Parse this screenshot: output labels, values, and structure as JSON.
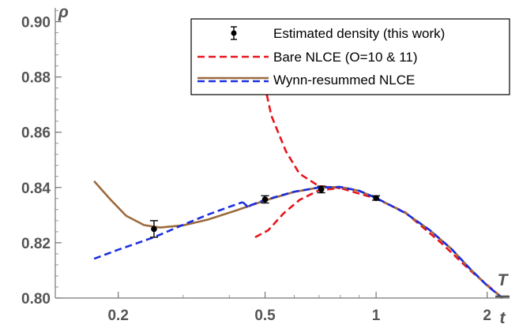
{
  "chart_data": {
    "type": "line",
    "xscale": "log",
    "xlabel_top": "T",
    "xlabel_bottom": "t",
    "ylabel": "ρ",
    "xlim": [
      0.135,
      2.3
    ],
    "ylim": [
      0.8,
      0.905
    ],
    "x_ticks": [
      {
        "value": 0.2,
        "label": "0.2"
      },
      {
        "value": 0.5,
        "label": "0.5"
      },
      {
        "value": 1,
        "label": "1"
      },
      {
        "value": 2,
        "label": "2"
      }
    ],
    "y_ticks": [
      {
        "value": 0.8,
        "label": "0.80"
      },
      {
        "value": 0.82,
        "label": "0.82"
      },
      {
        "value": 0.84,
        "label": "0.84"
      },
      {
        "value": 0.86,
        "label": "0.86"
      },
      {
        "value": 0.88,
        "label": "0.88"
      },
      {
        "value": 0.9,
        "label": "0.90"
      }
    ],
    "legend_position": "top-right",
    "series": [
      {
        "name": "Estimated density (this work)",
        "style": "points-errorbars",
        "color": "#000000",
        "points": [
          {
            "x": 0.25,
            "y": 0.825,
            "err": 0.003
          },
          {
            "x": 0.5,
            "y": 0.8357,
            "err": 0.0013
          },
          {
            "x": 0.71,
            "y": 0.8393,
            "err": 0.0012
          },
          {
            "x": 1.0,
            "y": 0.8362,
            "err": 0.0008
          }
        ]
      },
      {
        "name": "Bare NLCE (O=10 & 11)",
        "style": "dashed",
        "color": "#e8141c",
        "lines": [
          [
            [
              0.475,
              0.8973
            ],
            [
              0.49,
              0.882
            ],
            [
              0.52,
              0.866
            ],
            [
              0.57,
              0.853
            ],
            [
              0.62,
              0.845
            ],
            [
              0.7,
              0.8405
            ],
            [
              0.8,
              0.8398
            ],
            [
              1.0,
              0.836
            ],
            [
              1.2,
              0.831
            ],
            [
              1.5,
              0.82
            ],
            [
              1.8,
              0.81
            ],
            [
              2.2,
              0.8
            ]
          ],
          [
            [
              0.47,
              0.822
            ],
            [
              0.51,
              0.8245
            ],
            [
              0.56,
              0.8305
            ],
            [
              0.62,
              0.8355
            ],
            [
              0.7,
              0.839
            ],
            [
              0.8,
              0.8398
            ]
          ]
        ]
      },
      {
        "name": "Wynn-resummed NLCE",
        "style": "solid",
        "color": "#9c6a3d",
        "lines": [
          [
            [
              0.172,
              0.8423
            ],
            [
              0.19,
              0.8358
            ],
            [
              0.21,
              0.8298
            ],
            [
              0.235,
              0.8264
            ],
            [
              0.26,
              0.8255
            ],
            [
              0.3,
              0.8263
            ],
            [
              0.35,
              0.8284
            ],
            [
              0.42,
              0.8318
            ],
            [
              0.5,
              0.8353
            ],
            [
              0.6,
              0.8384
            ],
            [
              0.7,
              0.84
            ],
            [
              0.8,
              0.8402
            ],
            [
              0.9,
              0.8388
            ],
            [
              1.0,
              0.8362
            ],
            [
              1.2,
              0.8308
            ],
            [
              1.4,
              0.8245
            ],
            [
              1.6,
              0.8178
            ],
            [
              1.8,
              0.8105
            ],
            [
              2.0,
              0.8045
            ],
            [
              2.2,
              0.8
            ]
          ]
        ]
      },
      {
        "name": "Wynn-resummed NLCE",
        "style": "dashed",
        "color": "#1a2ee0",
        "lines": [
          [
            [
              0.172,
              0.8142
            ],
            [
              0.2,
              0.8175
            ],
            [
              0.25,
              0.822
            ],
            [
              0.3,
              0.8265
            ],
            [
              0.35,
              0.8302
            ],
            [
              0.4,
              0.833
            ],
            [
              0.435,
              0.8347
            ]
          ],
          [
            [
              0.435,
              0.8347
            ],
            [
              0.445,
              0.8335
            ],
            [
              0.45,
              0.8323
            ],
            [
              0.455,
              0.8335
            ]
          ],
          [
            [
              0.455,
              0.8335
            ],
            [
              0.5,
              0.8355
            ],
            [
              0.6,
              0.8385
            ],
            [
              0.7,
              0.84
            ],
            [
              0.8,
              0.8402
            ],
            [
              0.9,
              0.8388
            ],
            [
              1.0,
              0.8362
            ],
            [
              1.2,
              0.8308
            ],
            [
              1.4,
              0.8245
            ],
            [
              1.6,
              0.8178
            ],
            [
              1.8,
              0.8105
            ],
            [
              2.0,
              0.8045
            ],
            [
              2.2,
              0.8
            ]
          ]
        ]
      }
    ]
  }
}
